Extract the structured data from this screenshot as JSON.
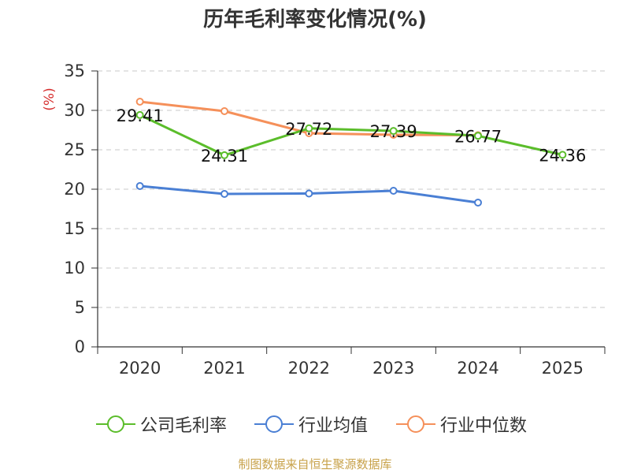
{
  "chart_data": {
    "type": "line",
    "title": "历年毛利率变化情况(%)",
    "ylabel": "(%)",
    "xlabel": "",
    "categories": [
      "2020",
      "2021",
      "2022",
      "2023",
      "2024",
      "2025"
    ],
    "ylim": [
      0,
      35
    ],
    "yticks": [
      0,
      5,
      10,
      15,
      20,
      25,
      30,
      35
    ],
    "grid": true,
    "legend_position": "bottom",
    "series": [
      {
        "name": "公司毛利率",
        "color": "#5bbd2b",
        "values": [
          29.41,
          24.31,
          27.72,
          27.39,
          26.77,
          24.36
        ],
        "labels": [
          "29.41",
          "24.31",
          "27.72",
          "27.39",
          "26.77",
          "24.36"
        ]
      },
      {
        "name": "行业均值",
        "color": "#4a7fd4",
        "values": [
          20.4,
          19.4,
          19.45,
          19.8,
          18.3,
          null
        ]
      },
      {
        "name": "行业中位数",
        "color": "#f5905a",
        "values": [
          31.1,
          29.9,
          27.1,
          26.9,
          26.85,
          null
        ]
      }
    ],
    "source": "制图数据来自恒生聚源数据库"
  }
}
